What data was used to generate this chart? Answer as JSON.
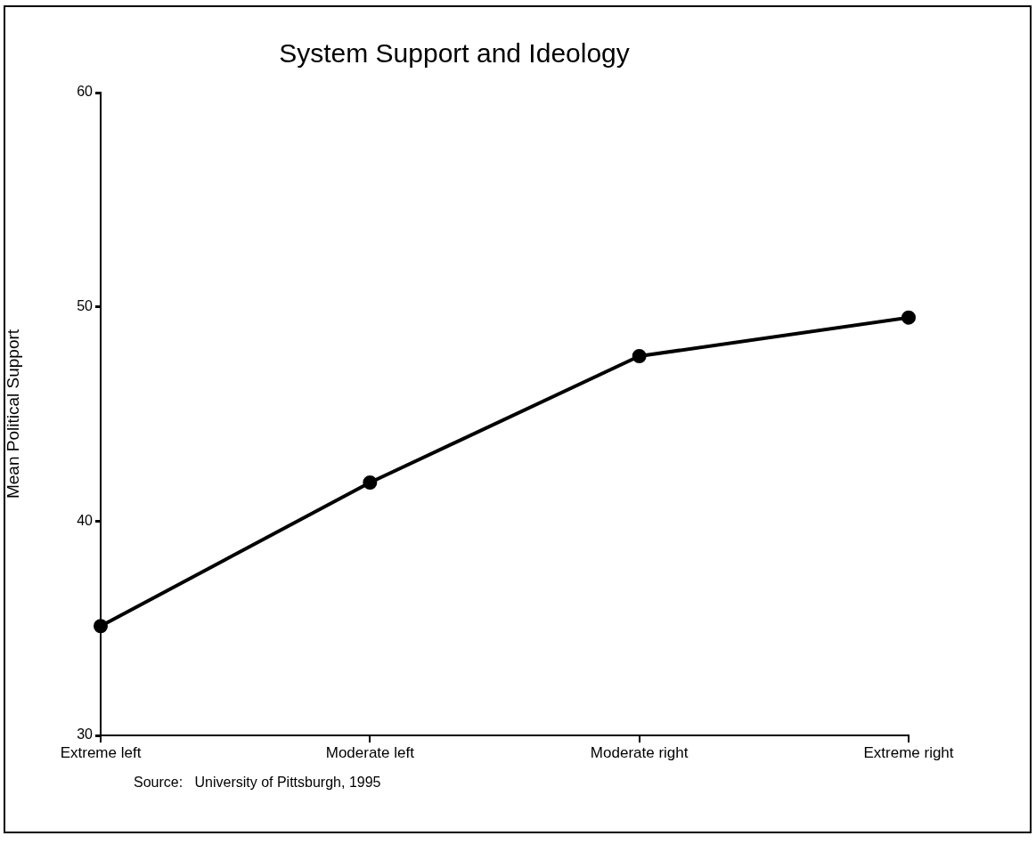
{
  "chart_data": {
    "type": "line",
    "title": "System Support and Ideology",
    "ylabel": "Mean Political Support",
    "categories": [
      "Extreme left",
      "Moderate left",
      "Moderate right",
      "Extreme right"
    ],
    "series": [
      {
        "color": "#000000",
        "values": [
          35.1,
          41.8,
          47.7,
          49.5
        ]
      }
    ],
    "ylim": [
      30,
      60
    ],
    "yticks": [
      30,
      40,
      50,
      60
    ],
    "grid": false,
    "legend": false,
    "marker": "circle",
    "line_style": "solid",
    "annotations": [
      "Source:   University of Pittsburgh, 1995"
    ]
  }
}
